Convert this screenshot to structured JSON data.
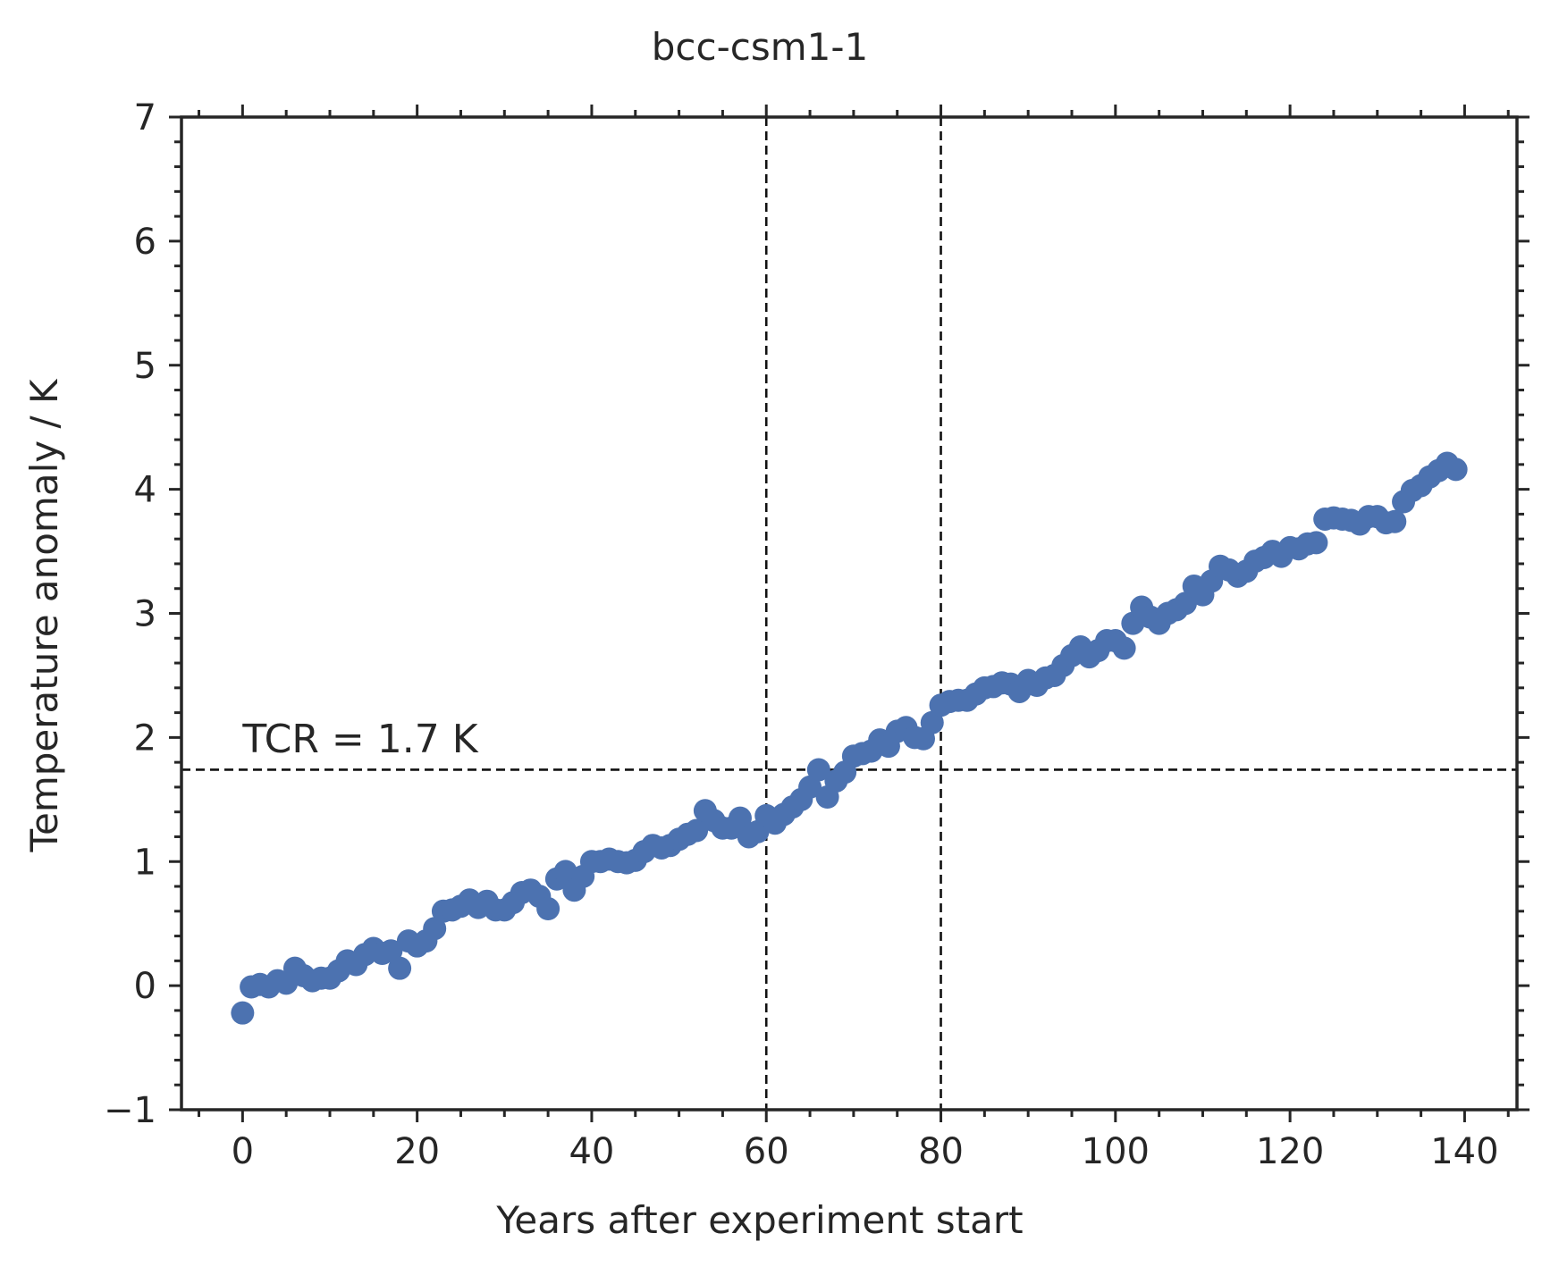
{
  "chart_data": {
    "type": "scatter",
    "title": "bcc-csm1-1",
    "xlabel": "Years after experiment start",
    "ylabel": "Temperature anomaly / K",
    "xlim": [
      -7,
      146
    ],
    "ylim": [
      -1,
      7
    ],
    "xticks": [
      0,
      20,
      40,
      60,
      80,
      100,
      120,
      140
    ],
    "xtick_labels": [
      "0",
      "20",
      "40",
      "60",
      "80",
      "100",
      "120",
      "140"
    ],
    "yticks": [
      -1,
      0,
      1,
      2,
      3,
      4,
      5,
      6,
      7
    ],
    "ytick_labels": [
      "−1",
      "0",
      "1",
      "2",
      "3",
      "4",
      "5",
      "6",
      "7"
    ],
    "x_minor_step": 5,
    "y_minor_step": 0.2,
    "grid": false,
    "marker_color": "#4c72b0",
    "reference_lines": {
      "vertical_x": [
        60,
        80
      ],
      "horizontal_y": 1.74,
      "style": "dashed",
      "color": "#111111"
    },
    "annotation": {
      "text": "TCR = 1.7 K",
      "x": 0,
      "y": 1.88
    },
    "series": [
      {
        "x": [
          0,
          1,
          2,
          3,
          4,
          5,
          6,
          7,
          8,
          9,
          10,
          11,
          12,
          13,
          14,
          15,
          16,
          17,
          18,
          19,
          20,
          21,
          22,
          23,
          24,
          25,
          26,
          27,
          28,
          29,
          30,
          31,
          32,
          33,
          34,
          35,
          36,
          37,
          38,
          39,
          40,
          41,
          42,
          43,
          44,
          45,
          46,
          47,
          48,
          49,
          50,
          51,
          52,
          53,
          54,
          55,
          56,
          57,
          58,
          59,
          60,
          61,
          62,
          63,
          64,
          65,
          66,
          67,
          68,
          69,
          70,
          71,
          72,
          73,
          74,
          75,
          76,
          77,
          78,
          79,
          80,
          81,
          82,
          83,
          84,
          85,
          86,
          87,
          88,
          89,
          90,
          91,
          92,
          93,
          94,
          95,
          96,
          97,
          98,
          99,
          100,
          101,
          102,
          103,
          104,
          105,
          106,
          107,
          108,
          109,
          110,
          111,
          112,
          113,
          114,
          115,
          116,
          117,
          118,
          119,
          120,
          121,
          122,
          123,
          124,
          125,
          126,
          127,
          128,
          129,
          130,
          131,
          132,
          133,
          134,
          135,
          136,
          137,
          138,
          139
        ],
        "y": [
          -0.22,
          -0.01,
          0.01,
          -0.01,
          0.04,
          0.02,
          0.14,
          0.08,
          0.04,
          0.06,
          0.06,
          0.12,
          0.2,
          0.17,
          0.25,
          0.3,
          0.26,
          0.28,
          0.14,
          0.36,
          0.32,
          0.36,
          0.46,
          0.6,
          0.61,
          0.64,
          0.69,
          0.63,
          0.68,
          0.61,
          0.61,
          0.67,
          0.75,
          0.77,
          0.72,
          0.62,
          0.86,
          0.92,
          0.77,
          0.88,
          1.0,
          1.0,
          1.02,
          1.0,
          0.99,
          1.01,
          1.08,
          1.13,
          1.11,
          1.13,
          1.18,
          1.22,
          1.25,
          1.41,
          1.33,
          1.27,
          1.27,
          1.35,
          1.2,
          1.24,
          1.37,
          1.31,
          1.38,
          1.44,
          1.5,
          1.6,
          1.74,
          1.52,
          1.65,
          1.72,
          1.85,
          1.87,
          1.89,
          1.98,
          1.93,
          2.05,
          2.08,
          2.0,
          1.99,
          2.12,
          2.26,
          2.29,
          2.3,
          2.3,
          2.35,
          2.4,
          2.41,
          2.44,
          2.43,
          2.37,
          2.46,
          2.42,
          2.48,
          2.5,
          2.58,
          2.66,
          2.73,
          2.65,
          2.7,
          2.78,
          2.78,
          2.72,
          2.92,
          3.05,
          2.97,
          2.92,
          3.0,
          3.03,
          3.08,
          3.22,
          3.15,
          3.26,
          3.38,
          3.35,
          3.3,
          3.34,
          3.42,
          3.45,
          3.5,
          3.46,
          3.53,
          3.52,
          3.56,
          3.57,
          3.76,
          3.77,
          3.76,
          3.75,
          3.72,
          3.78,
          3.78,
          3.73,
          3.74,
          3.9,
          3.99,
          4.03,
          4.1,
          4.15,
          4.21,
          4.16
        ]
      }
    ]
  }
}
